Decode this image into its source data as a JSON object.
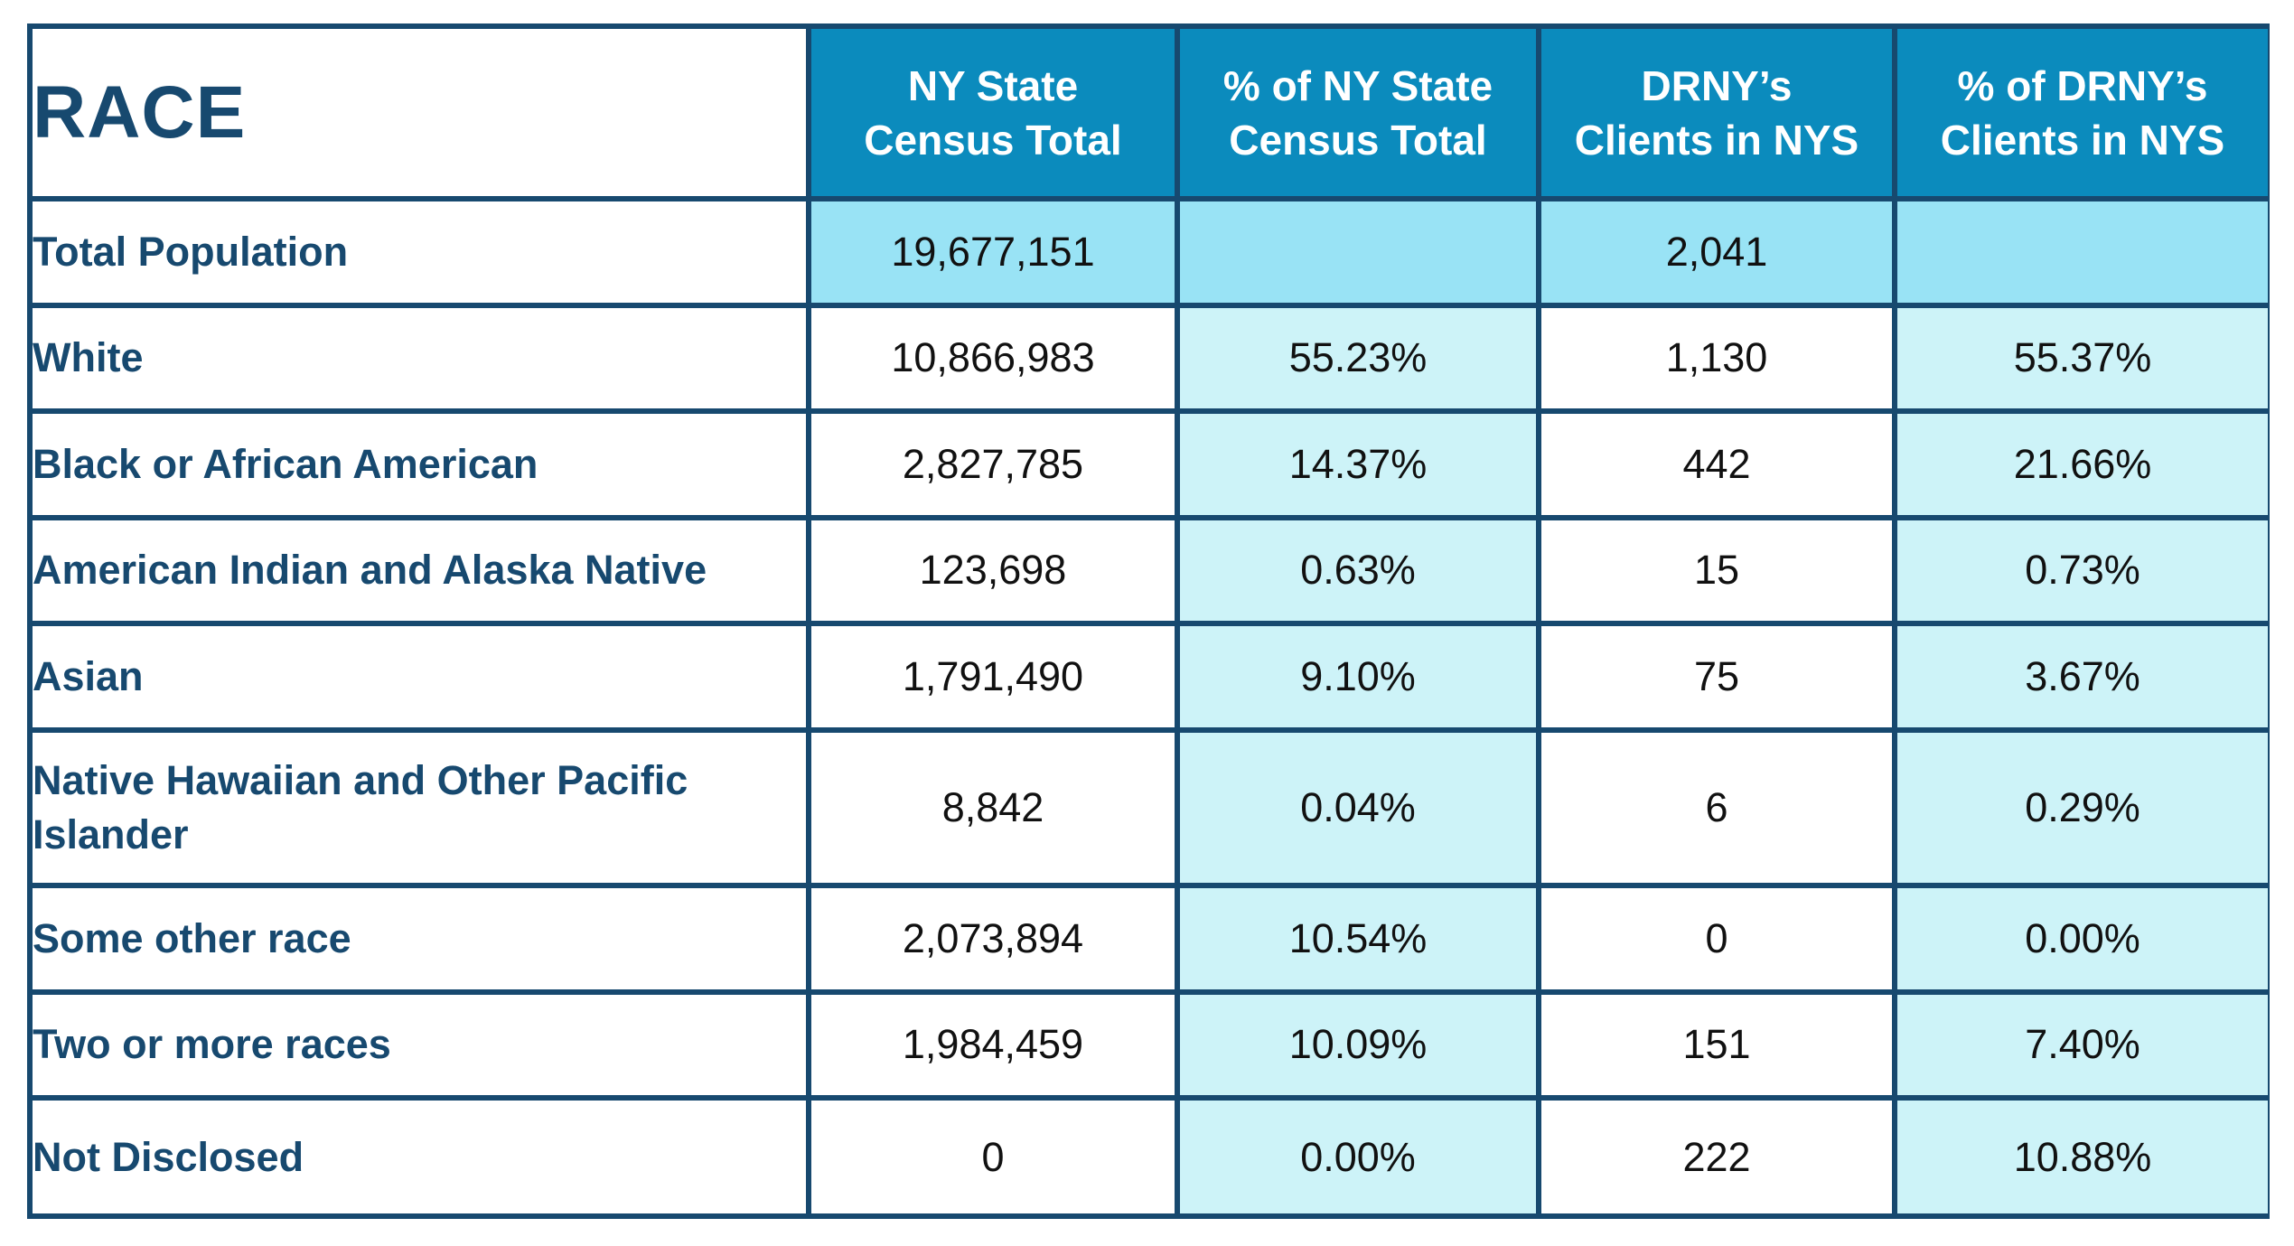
{
  "chart_data": {
    "type": "table",
    "title": "",
    "row_header": "RACE",
    "columns": [
      [
        "NY State",
        "Census Total"
      ],
      [
        "% of NY State",
        "Census Total"
      ],
      [
        "DRNY’s",
        "Clients in NYS"
      ],
      [
        "% of DRNY’s",
        "Clients in NYS"
      ]
    ],
    "rows": [
      {
        "label": [
          "Total Population"
        ],
        "census_total": "19,677,151",
        "census_pct": "",
        "clients": "2,041",
        "clients_pct": ""
      },
      {
        "label": [
          "White"
        ],
        "census_total": "10,866,983",
        "census_pct": "55.23%",
        "clients": "1,130",
        "clients_pct": "55.37%"
      },
      {
        "label": [
          "Black or African American"
        ],
        "census_total": "2,827,785",
        "census_pct": "14.37%",
        "clients": "442",
        "clients_pct": "21.66%"
      },
      {
        "label": [
          "American Indian and Alaska Native"
        ],
        "census_total": "123,698",
        "census_pct": "0.63%",
        "clients": "15",
        "clients_pct": "0.73%"
      },
      {
        "label": [
          "Asian"
        ],
        "census_total": "1,791,490",
        "census_pct": "9.10%",
        "clients": "75",
        "clients_pct": "3.67%"
      },
      {
        "label": [
          "Native Hawaiian and Other Pacific",
          "Islander"
        ],
        "census_total": "8,842",
        "census_pct": "0.04%",
        "clients": "6",
        "clients_pct": "0.29%"
      },
      {
        "label": [
          "Some other race"
        ],
        "census_total": "2,073,894",
        "census_pct": "10.54%",
        "clients": "0",
        "clients_pct": "0.00%"
      },
      {
        "label": [
          "Two or more races"
        ],
        "census_total": "1,984,459",
        "census_pct": "10.09%",
        "clients": "151",
        "clients_pct": "7.40%"
      },
      {
        "label": [
          "Not Disclosed"
        ],
        "census_total": "0",
        "census_pct": "0.00%",
        "clients": "222",
        "clients_pct": "10.88%"
      }
    ]
  },
  "colors": {
    "border": "#17496f",
    "header_bg": "#0b8bbd",
    "label_text": "#17496f",
    "total_row_bg": "#99e3f5",
    "pct_column_bg": "#cdf3f8"
  }
}
